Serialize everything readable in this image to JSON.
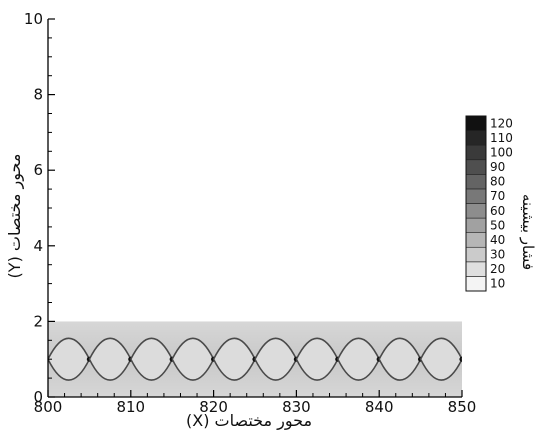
{
  "chart_data": {
    "type": "heatmap",
    "title": "",
    "xlabel": "محور مختصات (X)",
    "ylabel": "محور مختصات (Y)",
    "xlim": [
      800,
      850
    ],
    "ylim": [
      0,
      10
    ],
    "x_ticks": [
      "800",
      "810",
      "820",
      "830",
      "840",
      "850"
    ],
    "y_ticks": [
      "0",
      "2",
      "4",
      "6",
      "8",
      "10"
    ],
    "field_extent": {
      "x": [
        800,
        850
      ],
      "y": [
        0,
        2
      ]
    },
    "cell_width": 5,
    "colorbar": {
      "title": "فشار بیشینه",
      "levels": [
        "10",
        "20",
        "30",
        "40",
        "50",
        "60",
        "70",
        "80",
        "90",
        "100",
        "110",
        "120"
      ],
      "min_color": "#f4f4f4",
      "max_color": "#111111"
    },
    "grid": false
  }
}
